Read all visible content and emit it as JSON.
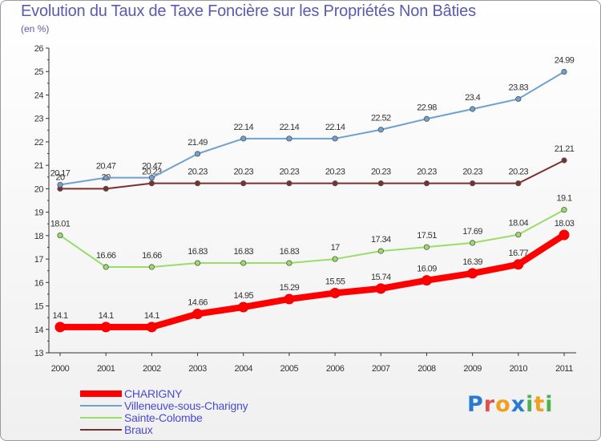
{
  "chart_data": {
    "type": "line",
    "title": "Evolution du Taux de Taxe Foncière sur les Propriétés Non Bâties",
    "subtitle": "(en %)",
    "xlabel": "",
    "ylabel": "",
    "x": [
      "2000",
      "2001",
      "2002",
      "2003",
      "2004",
      "2005",
      "2006",
      "2007",
      "2008",
      "2009",
      "2010",
      "2011"
    ],
    "ylim": [
      13,
      26
    ],
    "yticks": [
      "13",
      "14",
      "15",
      "16",
      "17",
      "18",
      "19",
      "20",
      "21",
      "22",
      "23",
      "24",
      "25",
      "26"
    ],
    "grid": false,
    "legend_position": "bottom-left",
    "series": [
      {
        "name": "CHARIGNY",
        "color": "#ff0000",
        "values": [
          14.1,
          14.1,
          14.1,
          14.66,
          14.95,
          15.29,
          15.55,
          15.74,
          16.09,
          16.39,
          16.77,
          18.03
        ],
        "labels": [
          "14.1",
          "14.1",
          "14.1",
          "14.66",
          "14.95",
          "15.29",
          "15.55",
          "15.74",
          "16.09",
          "16.39",
          "16.77",
          "18.03"
        ]
      },
      {
        "name": "Villeneuve-sous-Charigny",
        "color": "#6fa0d0",
        "values": [
          20.17,
          20.47,
          20.47,
          21.49,
          22.14,
          22.14,
          22.14,
          22.52,
          22.98,
          23.4,
          23.83,
          24.99
        ],
        "labels": [
          "20.17",
          "20.47",
          "20.47",
          "21.49",
          "22.14",
          "22.14",
          "22.14",
          "22.52",
          "22.98",
          "23.4",
          "23.83",
          "24.99"
        ]
      },
      {
        "name": "Sainte-Colombe",
        "color": "#99dd66",
        "values": [
          18.01,
          16.66,
          16.66,
          16.83,
          16.83,
          16.83,
          17,
          17.34,
          17.51,
          17.69,
          18.04,
          19.1
        ],
        "labels": [
          "18.01",
          "16.66",
          "16.66",
          "16.83",
          "16.83",
          "16.83",
          "17",
          "17.34",
          "17.51",
          "17.69",
          "18.04",
          "19.1"
        ]
      },
      {
        "name": "Braux",
        "color": "#7a3030",
        "values": [
          20,
          20,
          20.23,
          20.23,
          20.23,
          20.23,
          20.23,
          20.23,
          20.23,
          20.23,
          20.23,
          21.21
        ],
        "labels": [
          "20",
          "20",
          "20.23",
          "20.23",
          "20.23",
          "20.23",
          "20.23",
          "20.23",
          "20.23",
          "20.23",
          "20.23",
          "21.21"
        ]
      }
    ]
  },
  "logo": {
    "letters": [
      "P",
      "r",
      "o",
      "x",
      "i",
      "t",
      "i"
    ],
    "colors": [
      "#2a7ad0",
      "#e05050",
      "#f0a020",
      "#2a7ad0",
      "#50b050",
      "#f0a020",
      "#50b050"
    ]
  }
}
